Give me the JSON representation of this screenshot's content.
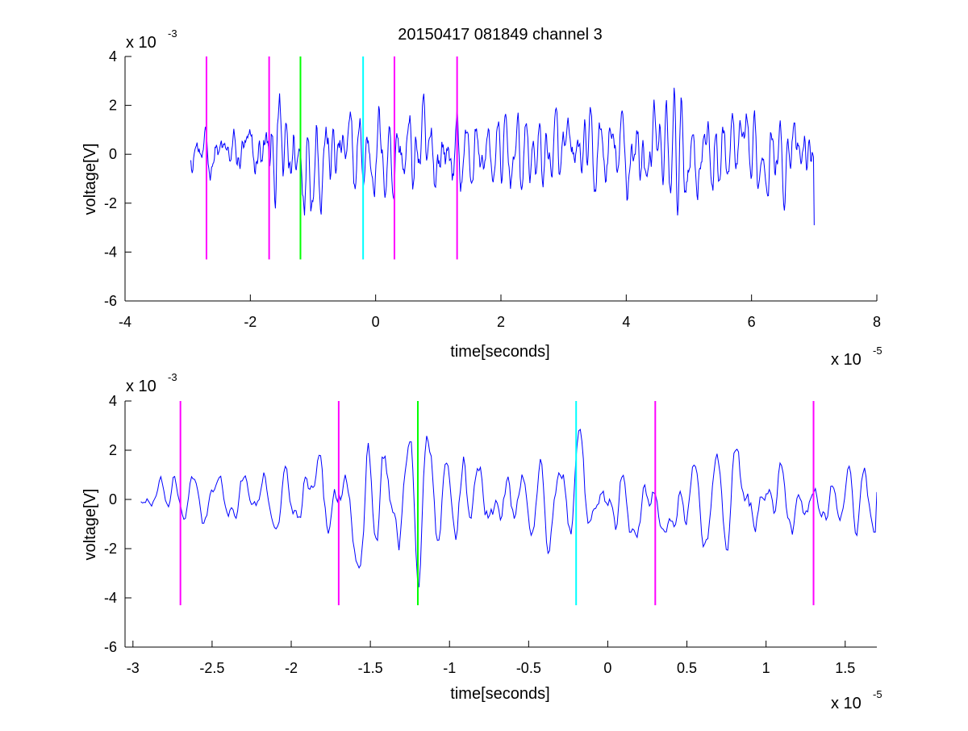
{
  "figure": {
    "title": "20150417 081849 channel 3"
  },
  "chart_data": [
    {
      "type": "line",
      "title": "20150417 081849 channel 3",
      "xlabel": "time[seconds]",
      "ylabel": "voltage[V]",
      "xlim": [
        -4,
        8
      ],
      "ylim": [
        -6,
        4
      ],
      "x_ticks": [
        "-4",
        "-2",
        "0",
        "2",
        "4",
        "6",
        "8"
      ],
      "y_ticks": [
        "-6",
        "-4",
        "-2",
        "0",
        "2",
        "4"
      ],
      "x_multiplier": {
        "base": "x 10",
        "exponent": "-5"
      },
      "y_multiplier": {
        "base": "x 10",
        "exponent": "-3"
      },
      "grid": false,
      "series": [
        {
          "color": "#0000ff",
          "x_range": [
            -2.95,
            7.0
          ],
          "points": 900,
          "approx_amplitude_envelope": [
            [
              -2.95,
              1.2
            ],
            [
              -2.0,
              2.0
            ],
            [
              -1.5,
              3.5
            ],
            [
              -1.2,
              3.5
            ],
            [
              -0.5,
              2.5
            ],
            [
              0.0,
              2.5
            ],
            [
              1.0,
              3.0
            ],
            [
              1.5,
              2.0
            ],
            [
              3.0,
              2.0
            ],
            [
              4.5,
              3.0
            ],
            [
              5.5,
              2.5
            ],
            [
              6.5,
              2.0
            ],
            [
              7.0,
              2.0
            ]
          ],
          "end_value": -2.9
        }
      ],
      "markers": [
        {
          "x": -2.7,
          "color": "#ff00ff",
          "y_range": [
            -4.3,
            4.0
          ]
        },
        {
          "x": -1.7,
          "color": "#ff00ff",
          "y_range": [
            -4.3,
            4.0
          ]
        },
        {
          "x": -1.2,
          "color": "#00ff00",
          "y_range": [
            -4.3,
            4.0
          ]
        },
        {
          "x": -0.2,
          "color": "#00ffff",
          "y_range": [
            -4.3,
            4.0
          ]
        },
        {
          "x": 0.3,
          "color": "#ff00ff",
          "y_range": [
            -4.3,
            4.0
          ]
        },
        {
          "x": 1.3,
          "color": "#ff00ff",
          "y_range": [
            -4.3,
            4.0
          ]
        }
      ]
    },
    {
      "type": "line",
      "title": "",
      "xlabel": "time[seconds]",
      "ylabel": "voltage[V]",
      "xlim": [
        -3.05,
        1.7
      ],
      "ylim": [
        -6,
        4
      ],
      "x_tick_values": [
        -3,
        -2.5,
        -2,
        -1.5,
        -1,
        -0.5,
        0,
        0.5,
        1,
        1.5
      ],
      "x_ticks": [
        "-3",
        "-2.5",
        "-2",
        "-1.5",
        "-1",
        "-0.5",
        "0",
        "0.5",
        "1",
        "1.5"
      ],
      "y_ticks": [
        "-6",
        "-4",
        "-2",
        "0",
        "2",
        "4"
      ],
      "x_multiplier": {
        "base": "x 10",
        "exponent": "-5"
      },
      "y_multiplier": {
        "base": "x 10",
        "exponent": "-3"
      },
      "grid": false,
      "series": [
        {
          "color": "#0000ff",
          "x_range": [
            -2.95,
            1.7
          ],
          "points": 480,
          "approx_amplitude_envelope": [
            [
              -2.95,
              1.2
            ],
            [
              -2.0,
              1.6
            ],
            [
              -1.9,
              2.2
            ],
            [
              -1.5,
              3.5
            ],
            [
              -1.2,
              3.5
            ],
            [
              -0.5,
              2.0
            ],
            [
              -0.2,
              2.5
            ],
            [
              0.3,
              2.0
            ],
            [
              0.9,
              3.0
            ],
            [
              1.3,
              1.8
            ],
            [
              1.7,
              1.8
            ]
          ],
          "end_value": 0.3
        }
      ],
      "markers": [
        {
          "x": -2.7,
          "color": "#ff00ff",
          "y_range": [
            -4.3,
            4.0
          ]
        },
        {
          "x": -1.7,
          "color": "#ff00ff",
          "y_range": [
            -4.3,
            4.0
          ]
        },
        {
          "x": -1.2,
          "color": "#00ff00",
          "y_range": [
            -4.3,
            4.0
          ]
        },
        {
          "x": -0.2,
          "color": "#00ffff",
          "y_range": [
            -4.3,
            4.0
          ]
        },
        {
          "x": 0.3,
          "color": "#ff00ff",
          "y_range": [
            -4.3,
            4.0
          ]
        },
        {
          "x": 1.3,
          "color": "#ff00ff",
          "y_range": [
            -4.3,
            4.0
          ]
        }
      ]
    }
  ]
}
